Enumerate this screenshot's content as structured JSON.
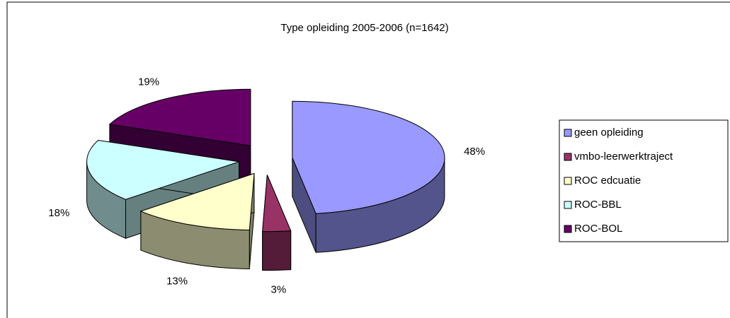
{
  "chart_data": {
    "type": "pie3d",
    "title": "Type opleiding 2005-2006 (n=1642)",
    "categories": [
      "geen opleiding",
      "vmbo-leerwerktraject",
      "ROC edcuatie",
      "ROC-BBL",
      "ROC-BOL"
    ],
    "values": [
      48,
      3,
      13,
      18,
      19
    ],
    "value_labels": [
      "48%",
      "3%",
      "13%",
      "18%",
      "19%"
    ],
    "colors": [
      "#9999ff",
      "#993366",
      "#ffffcc",
      "#ccffff",
      "#660066"
    ],
    "legend": "right"
  }
}
